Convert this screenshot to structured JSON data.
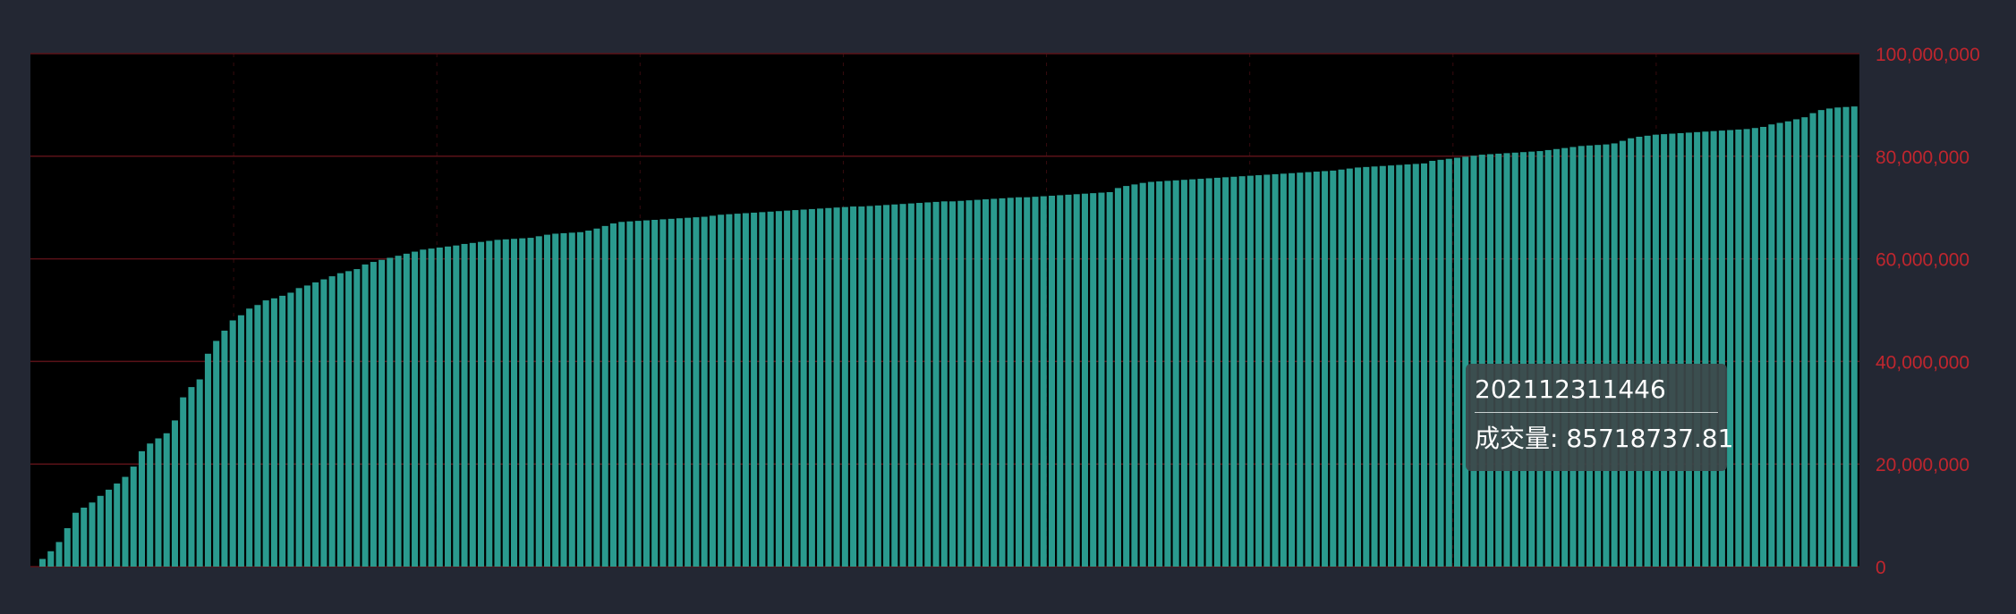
{
  "chart_data": {
    "type": "bar",
    "title": "",
    "xlabel": "",
    "ylabel": "",
    "ylim": [
      0,
      100000000
    ],
    "y_axis_position": "right",
    "y_ticks": [
      "0",
      "20,000,000",
      "40,000,000",
      "60,000,000",
      "80,000,000",
      "100,000,000"
    ],
    "grid": true,
    "colors": {
      "background": "#232733",
      "plot_background": "#000000",
      "bar": "#2a9a8e",
      "grid": "#5a1218",
      "axis_label": "#c0262e"
    },
    "series": [
      {
        "name": "成交量",
        "values": [
          1500000,
          3000000,
          4800000,
          7500000,
          10500000,
          11500000,
          12500000,
          13800000,
          15000000,
          16200000,
          17500000,
          19500000,
          22500000,
          24000000,
          25000000,
          26000000,
          28500000,
          33000000,
          35000000,
          36500000,
          41500000,
          44000000,
          46000000,
          48000000,
          49000000,
          50300000,
          51000000,
          51900000,
          52300000,
          52800000,
          53400000,
          54300000,
          54800000,
          55400000,
          56000000,
          56600000,
          57200000,
          57600000,
          58000000,
          58900000,
          59400000,
          59800000,
          60200000,
          60600000,
          61000000,
          61400000,
          61800000,
          62000000,
          62200000,
          62400000,
          62600000,
          62900000,
          63100000,
          63300000,
          63500000,
          63700000,
          63800000,
          63900000,
          64000000,
          64100000,
          64400000,
          64700000,
          64900000,
          65000000,
          65100000,
          65200000,
          65500000,
          65900000,
          66400000,
          66900000,
          67200000,
          67300000,
          67400000,
          67500000,
          67600000,
          67700000,
          67800000,
          67900000,
          68000000,
          68100000,
          68200000,
          68400000,
          68600000,
          68700000,
          68800000,
          68900000,
          69000000,
          69100000,
          69200000,
          69300000,
          69400000,
          69500000,
          69600000,
          69700000,
          69800000,
          69900000,
          70000000,
          70100000,
          70200000,
          70200000,
          70300000,
          70400000,
          70500000,
          70600000,
          70700000,
          70800000,
          70900000,
          71000000,
          71100000,
          71200000,
          71200000,
          71300000,
          71400000,
          71500000,
          71600000,
          71700000,
          71800000,
          71900000,
          72000000,
          72000000,
          72100000,
          72200000,
          72300000,
          72400000,
          72500000,
          72600000,
          72700000,
          72800000,
          72900000,
          73000000,
          73800000,
          74200000,
          74500000,
          74800000,
          75000000,
          75100000,
          75200000,
          75300000,
          75400000,
          75500000,
          75600000,
          75700000,
          75800000,
          75900000,
          76000000,
          76100000,
          76200000,
          76300000,
          76400000,
          76500000,
          76600000,
          76700000,
          76800000,
          76900000,
          77000000,
          77100000,
          77200000,
          77400000,
          77600000,
          77800000,
          77900000,
          78000000,
          78100000,
          78200000,
          78300000,
          78400000,
          78500000,
          78600000,
          79100000,
          79300000,
          79500000,
          79700000,
          79900000,
          80100000,
          80300000,
          80400000,
          80500000,
          80600000,
          80700000,
          80800000,
          80900000,
          81000000,
          81200000,
          81400000,
          81600000,
          81800000,
          82000000,
          82100000,
          82200000,
          82300000,
          82500000,
          83000000,
          83500000,
          83800000,
          84000000,
          84200000,
          84300000,
          84400000,
          84500000,
          84600000,
          84700000,
          84800000,
          84900000,
          85000000,
          85100000,
          85200000,
          85300000,
          85500000,
          85718737.81,
          86200000,
          86500000,
          86800000,
          87200000,
          87600000,
          88400000,
          89000000,
          89300000,
          89500000,
          89600000,
          89700000
        ]
      }
    ],
    "tooltip": {
      "title": "202112311446",
      "label": "成交量",
      "value": "85718737.81",
      "row_text": "成交量: 85718737.81"
    }
  }
}
